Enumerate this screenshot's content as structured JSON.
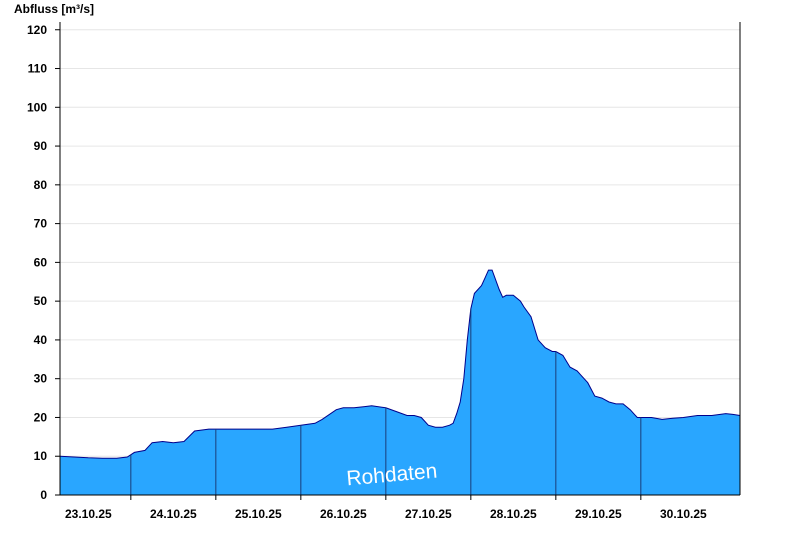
{
  "chart_data": {
    "type": "area",
    "ylabel": "Abfluss [m³/s]",
    "ylim": [
      0,
      122
    ],
    "yticks": [
      0,
      10,
      20,
      30,
      40,
      50,
      60,
      70,
      80,
      90,
      100,
      110,
      120
    ],
    "xlim": [
      "2025-10-22T16:00",
      "2025-10-30T16:00"
    ],
    "xticks": [
      {
        "label": "23.10.25",
        "at": "2025-10-23T00:00"
      },
      {
        "label": "24.10.25",
        "at": "2025-10-24T00:00"
      },
      {
        "label": "25.10.25",
        "at": "2025-10-25T00:00"
      },
      {
        "label": "26.10.25",
        "at": "2025-10-26T00:00"
      },
      {
        "label": "27.10.25",
        "at": "2025-10-27T00:00"
      },
      {
        "label": "28.10.25",
        "at": "2025-10-28T00:00"
      },
      {
        "label": "29.10.25",
        "at": "2025-10-29T00:00"
      },
      {
        "label": "30.10.25",
        "at": "2025-10-30T00:00"
      }
    ],
    "day_separators": [
      "2025-10-23T12:00",
      "2025-10-24T12:00",
      "2025-10-25T12:00",
      "2025-10-26T12:00",
      "2025-10-27T12:00",
      "2025-10-28T12:00",
      "2025-10-29T12:00"
    ],
    "grid": true,
    "fill_color": "#29a6ff",
    "line_color": "#00008b",
    "annotation": "Rohdaten",
    "series": [
      {
        "x": [
          "2025-10-22T16:00",
          "2025-10-22T20:00",
          "2025-10-23T00:00",
          "2025-10-23T04:00",
          "2025-10-23T08:00",
          "2025-10-23T11:00",
          "2025-10-23T13:00",
          "2025-10-23T16:00",
          "2025-10-23T18:00",
          "2025-10-23T21:00",
          "2025-10-24T00:00",
          "2025-10-24T03:00",
          "2025-10-24T06:00",
          "2025-10-24T10:00",
          "2025-10-24T12:00",
          "2025-10-24T16:00",
          "2025-10-24T20:00",
          "2025-10-25T00:00",
          "2025-10-25T04:00",
          "2025-10-25T08:00",
          "2025-10-25T12:00",
          "2025-10-25T16:00",
          "2025-10-25T18:00",
          "2025-10-25T22:00",
          "2025-10-26T00:00",
          "2025-10-26T03:00",
          "2025-10-26T06:00",
          "2025-10-26T08:00",
          "2025-10-26T12:00",
          "2025-10-26T15:00",
          "2025-10-26T18:00",
          "2025-10-26T20:00",
          "2025-10-26T22:00",
          "2025-10-27T00:00",
          "2025-10-27T02:00",
          "2025-10-27T04:00",
          "2025-10-27T06:00",
          "2025-10-27T07:00",
          "2025-10-27T08:00",
          "2025-10-27T09:00",
          "2025-10-27T10:00",
          "2025-10-27T11:00",
          "2025-10-27T12:00",
          "2025-10-27T13:00",
          "2025-10-27T15:00",
          "2025-10-27T16:00",
          "2025-10-27T17:00",
          "2025-10-27T18:00",
          "2025-10-27T20:00",
          "2025-10-27T21:00",
          "2025-10-27T22:00",
          "2025-10-28T00:00",
          "2025-10-28T02:00",
          "2025-10-28T03:00",
          "2025-10-28T05:00",
          "2025-10-28T07:00",
          "2025-10-28T09:00",
          "2025-10-28T11:00",
          "2025-10-28T12:00",
          "2025-10-28T14:00",
          "2025-10-28T16:00",
          "2025-10-28T18:00",
          "2025-10-28T19:00",
          "2025-10-28T21:00",
          "2025-10-28T23:00",
          "2025-10-29T01:00",
          "2025-10-29T03:00",
          "2025-10-29T05:00",
          "2025-10-29T07:00",
          "2025-10-29T09:00",
          "2025-10-29T11:00",
          "2025-10-29T13:00",
          "2025-10-29T15:00",
          "2025-10-29T18:00",
          "2025-10-29T21:00",
          "2025-10-30T00:00",
          "2025-10-30T04:00",
          "2025-10-30T08:00",
          "2025-10-30T12:00",
          "2025-10-30T14:00",
          "2025-10-30T16:00"
        ],
        "y": [
          10,
          9.8,
          9.6,
          9.5,
          9.5,
          9.8,
          11,
          11.5,
          13.5,
          13.8,
          13.5,
          13.8,
          16.5,
          17,
          17,
          17,
          17,
          17,
          17,
          17.5,
          18,
          18.5,
          19.5,
          22,
          22.5,
          22.5,
          22.8,
          23,
          22.5,
          21.5,
          20.5,
          20.5,
          20,
          18,
          17.5,
          17.5,
          18,
          18.5,
          21,
          24,
          30,
          40,
          48,
          52,
          54,
          56,
          58,
          58,
          53,
          51,
          51.5,
          51.5,
          50,
          48.5,
          46,
          40,
          38,
          37,
          37,
          36,
          33,
          32,
          31,
          29,
          25.5,
          25,
          24,
          23.5,
          23.5,
          22,
          20,
          20,
          20,
          19.5,
          19.8,
          20,
          20.5,
          20.5,
          21,
          20.8,
          20.5
        ]
      }
    ]
  }
}
